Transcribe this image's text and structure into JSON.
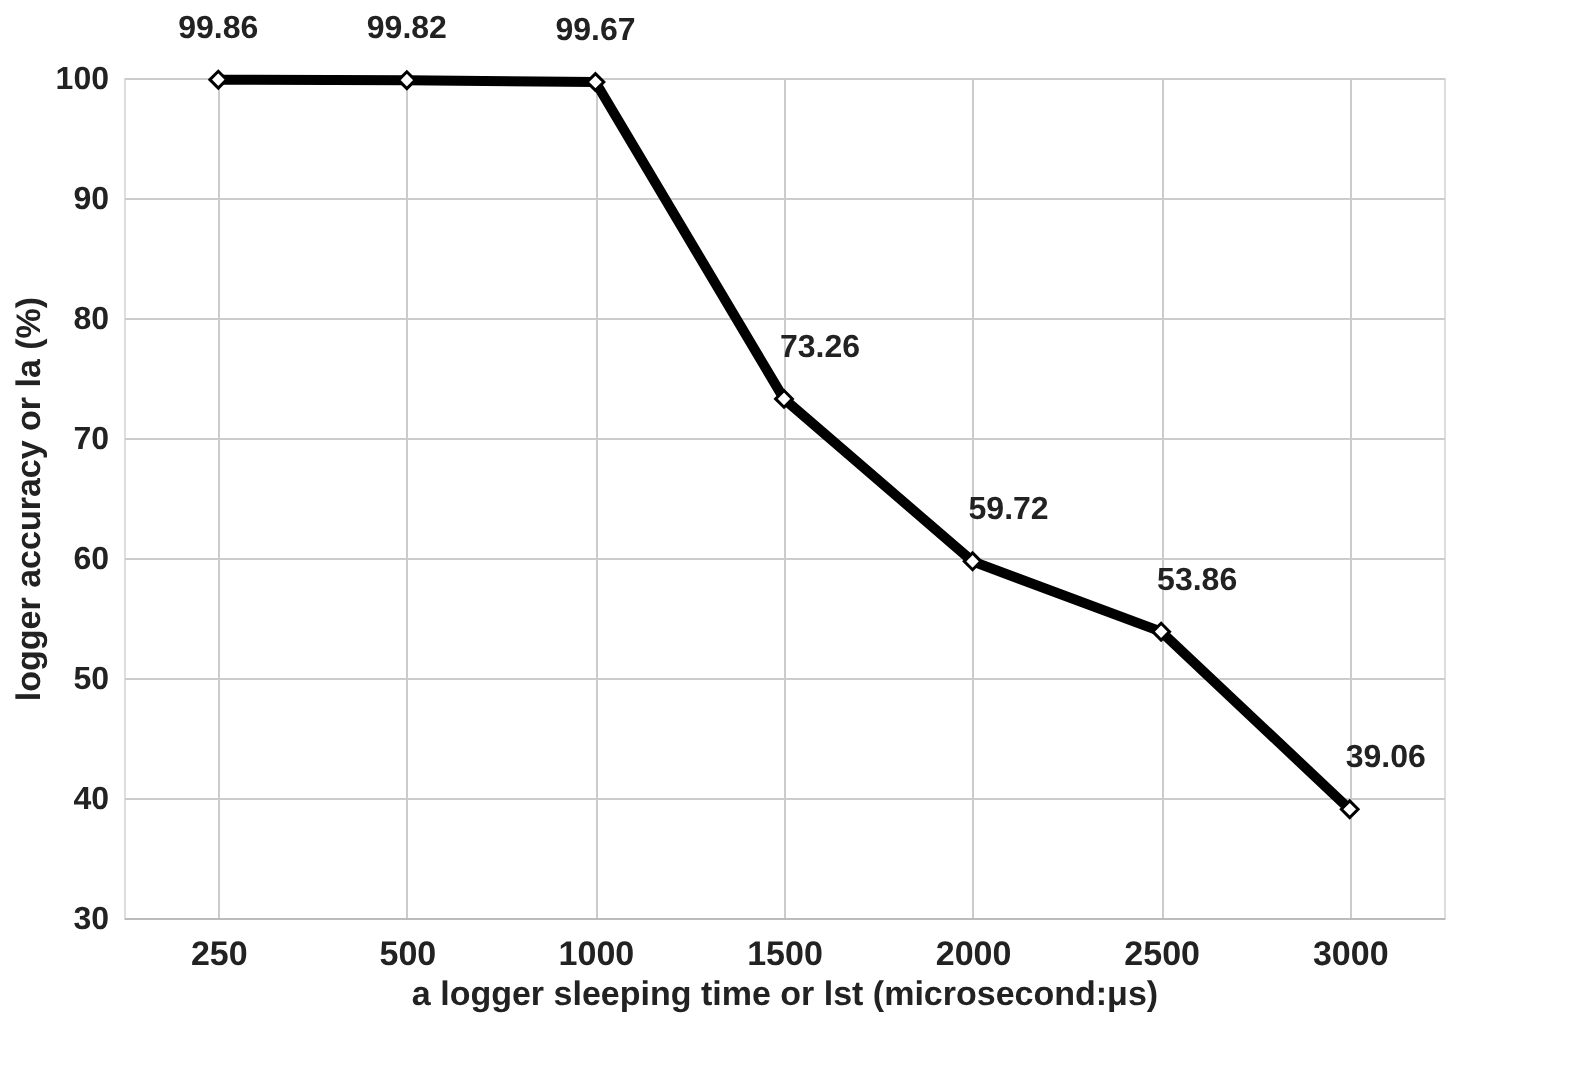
{
  "chart_data": {
    "type": "line",
    "xlabel": "a logger sleeping time or lst (microsecond:μs)",
    "ylabel": "logger accuracy or la (%)",
    "categories": [
      "250",
      "500",
      "1000",
      "1500",
      "2000",
      "2500",
      "3000"
    ],
    "series": [
      {
        "color": "#000000",
        "values": [
          99.86,
          99.82,
          99.67,
          73.26,
          59.72,
          53.86,
          39.06
        ]
      }
    ],
    "ylim": [
      30,
      100
    ],
    "yticks": [
      30,
      40,
      50,
      60,
      70,
      80,
      90,
      100
    ],
    "grid": true,
    "marker": "diamond",
    "line_style": "solid",
    "data_labels": true
  }
}
